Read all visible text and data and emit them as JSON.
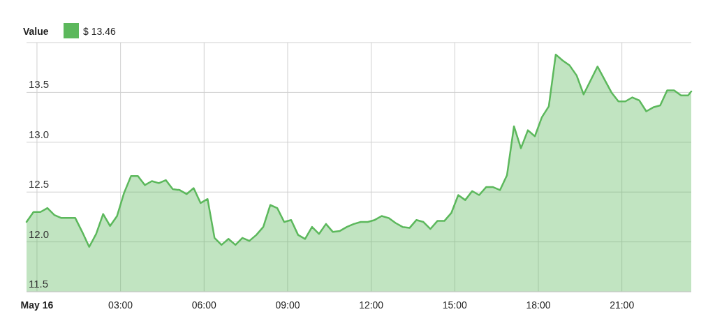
{
  "chart_data": {
    "type": "area",
    "legend_title": "Value",
    "legend": "top left",
    "grid": true,
    "x": [
      -0.375,
      -0.125,
      0.125,
      0.375,
      0.625,
      0.875,
      1.125,
      1.375,
      1.625,
      1.875,
      2.125,
      2.375,
      2.625,
      2.875,
      3.125,
      3.375,
      3.625,
      3.875,
      4.125,
      4.375,
      4.625,
      4.875,
      5.125,
      5.375,
      5.625,
      5.875,
      6.125,
      6.375,
      6.625,
      6.875,
      7.125,
      7.375,
      7.625,
      7.875,
      8.125,
      8.375,
      8.625,
      8.875,
      9.125,
      9.375,
      9.625,
      9.875,
      10.125,
      10.375,
      10.625,
      10.875,
      11.125,
      11.375,
      11.625,
      11.875,
      12.125,
      12.375,
      12.625,
      12.875,
      13.125,
      13.375,
      13.625,
      13.875,
      14.125,
      14.375,
      14.625,
      14.875,
      15.125,
      15.375,
      15.625,
      15.875,
      16.125,
      16.375,
      16.625,
      16.875,
      17.125,
      17.375,
      17.625,
      17.875,
      18.125,
      18.375,
      18.625,
      18.875,
      19.125,
      19.375,
      19.625,
      19.875,
      20.125,
      20.375,
      20.625,
      20.875,
      21.125,
      21.375,
      21.625,
      21.875,
      22.125,
      22.375,
      22.625,
      22.875,
      23.125,
      23.375,
      23.49
    ],
    "series": [
      {
        "name": "$ 13.46",
        "color": "#5cb85c",
        "values": [
          12.2,
          12.3,
          12.3,
          12.34,
          12.27,
          12.24,
          12.24,
          12.24,
          12.1,
          11.95,
          12.08,
          12.28,
          12.16,
          12.26,
          12.49,
          12.66,
          12.66,
          12.57,
          12.61,
          12.59,
          12.62,
          12.53,
          12.52,
          12.48,
          12.54,
          12.39,
          12.43,
          12.04,
          11.97,
          12.03,
          11.97,
          12.04,
          12.01,
          12.07,
          12.15,
          12.37,
          12.34,
          12.2,
          12.22,
          12.07,
          12.03,
          12.15,
          12.08,
          12.18,
          12.1,
          12.11,
          12.15,
          12.18,
          12.2,
          12.2,
          12.22,
          12.26,
          12.24,
          12.19,
          12.15,
          12.14,
          12.22,
          12.2,
          12.13,
          12.21,
          12.21,
          12.29,
          12.47,
          12.42,
          12.51,
          12.47,
          12.55,
          12.55,
          12.52,
          12.67,
          13.16,
          12.94,
          13.12,
          13.06,
          13.25,
          13.36,
          13.88,
          13.82,
          13.77,
          13.67,
          13.48,
          13.62,
          13.76,
          13.63,
          13.5,
          13.41,
          13.41,
          13.45,
          13.42,
          13.31,
          13.35,
          13.37,
          13.52,
          13.52,
          13.47,
          13.47,
          13.51
        ]
      }
    ],
    "xlim": [
      -0.375,
      23.49
    ],
    "xticks": [
      {
        "value": 0,
        "label": "May 16"
      },
      {
        "value": 3,
        "label": "03:00"
      },
      {
        "value": 6,
        "label": "06:00"
      },
      {
        "value": 9,
        "label": "09:00"
      },
      {
        "value": 12,
        "label": "12:00"
      },
      {
        "value": 15,
        "label": "15:00"
      },
      {
        "value": 18,
        "label": "18:00"
      },
      {
        "value": 21,
        "label": "21:00"
      }
    ],
    "ylim": [
      11.5,
      14.0
    ],
    "yticks": [
      {
        "value": 11.5,
        "label": "11.5"
      },
      {
        "value": 12.0,
        "label": "12.0"
      },
      {
        "value": 12.5,
        "label": "12.5"
      },
      {
        "value": 13.0,
        "label": "13.0"
      },
      {
        "value": 13.5,
        "label": "13.5"
      },
      {
        "value": 14.0,
        "label": null
      }
    ]
  }
}
